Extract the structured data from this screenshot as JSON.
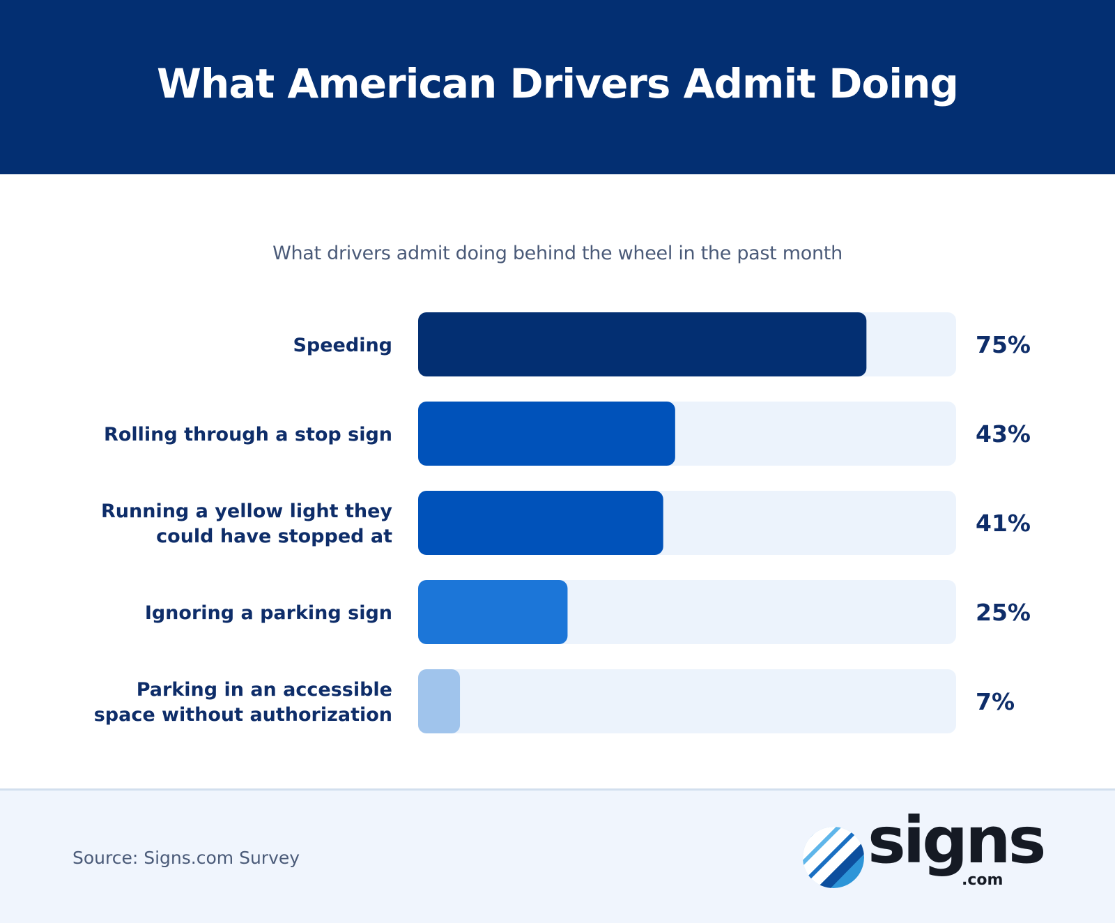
{
  "header": {
    "title": "What American Drivers Admit Doing"
  },
  "chart_data": {
    "type": "bar",
    "orientation": "horizontal",
    "subtitle": "What drivers admit doing behind the wheel in the past month",
    "categories": [
      [
        "Speeding"
      ],
      [
        "Rolling through a stop sign"
      ],
      [
        "Running a yellow light they",
        "could have stopped at"
      ],
      [
        "Ignoring a parking sign"
      ],
      [
        "Parking in an accessible",
        "space without authorization"
      ]
    ],
    "values": [
      75,
      43,
      41,
      25,
      7
    ],
    "value_labels": [
      "75%",
      "43%",
      "41%",
      "25%",
      "7%"
    ],
    "xlim": [
      0,
      90
    ],
    "colors": [
      "#032f72",
      "#0052ba",
      "#0052ba",
      "#1c76d8",
      "#a0c4ec"
    ],
    "track_color": "#ecf3fc",
    "grid": false,
    "legend": "none"
  },
  "footer": {
    "source": "Source: Signs.com Survey",
    "logo_text": "signs",
    "logo_suffix": ".com"
  }
}
